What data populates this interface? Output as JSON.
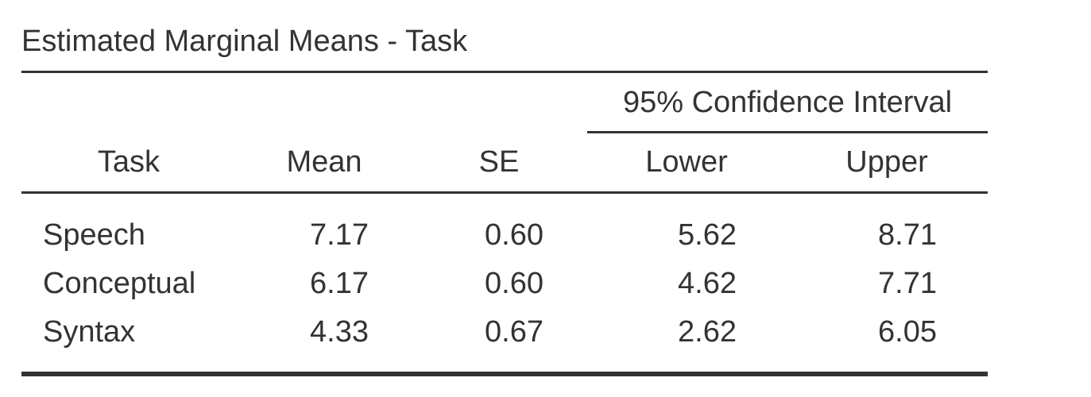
{
  "title": "Estimated Marginal Means - Task",
  "table": {
    "spanner": "95% Confidence Interval",
    "columns": [
      "Task",
      "Mean",
      "SE",
      "Lower",
      "Upper"
    ],
    "rows": [
      [
        "Speech",
        "7.17",
        "0.60",
        "5.62",
        "8.71"
      ],
      [
        "Conceptual",
        "6.17",
        "0.60",
        "4.62",
        "7.71"
      ],
      [
        "Syntax",
        "4.33",
        "0.67",
        "2.62",
        "6.05"
      ]
    ]
  }
}
